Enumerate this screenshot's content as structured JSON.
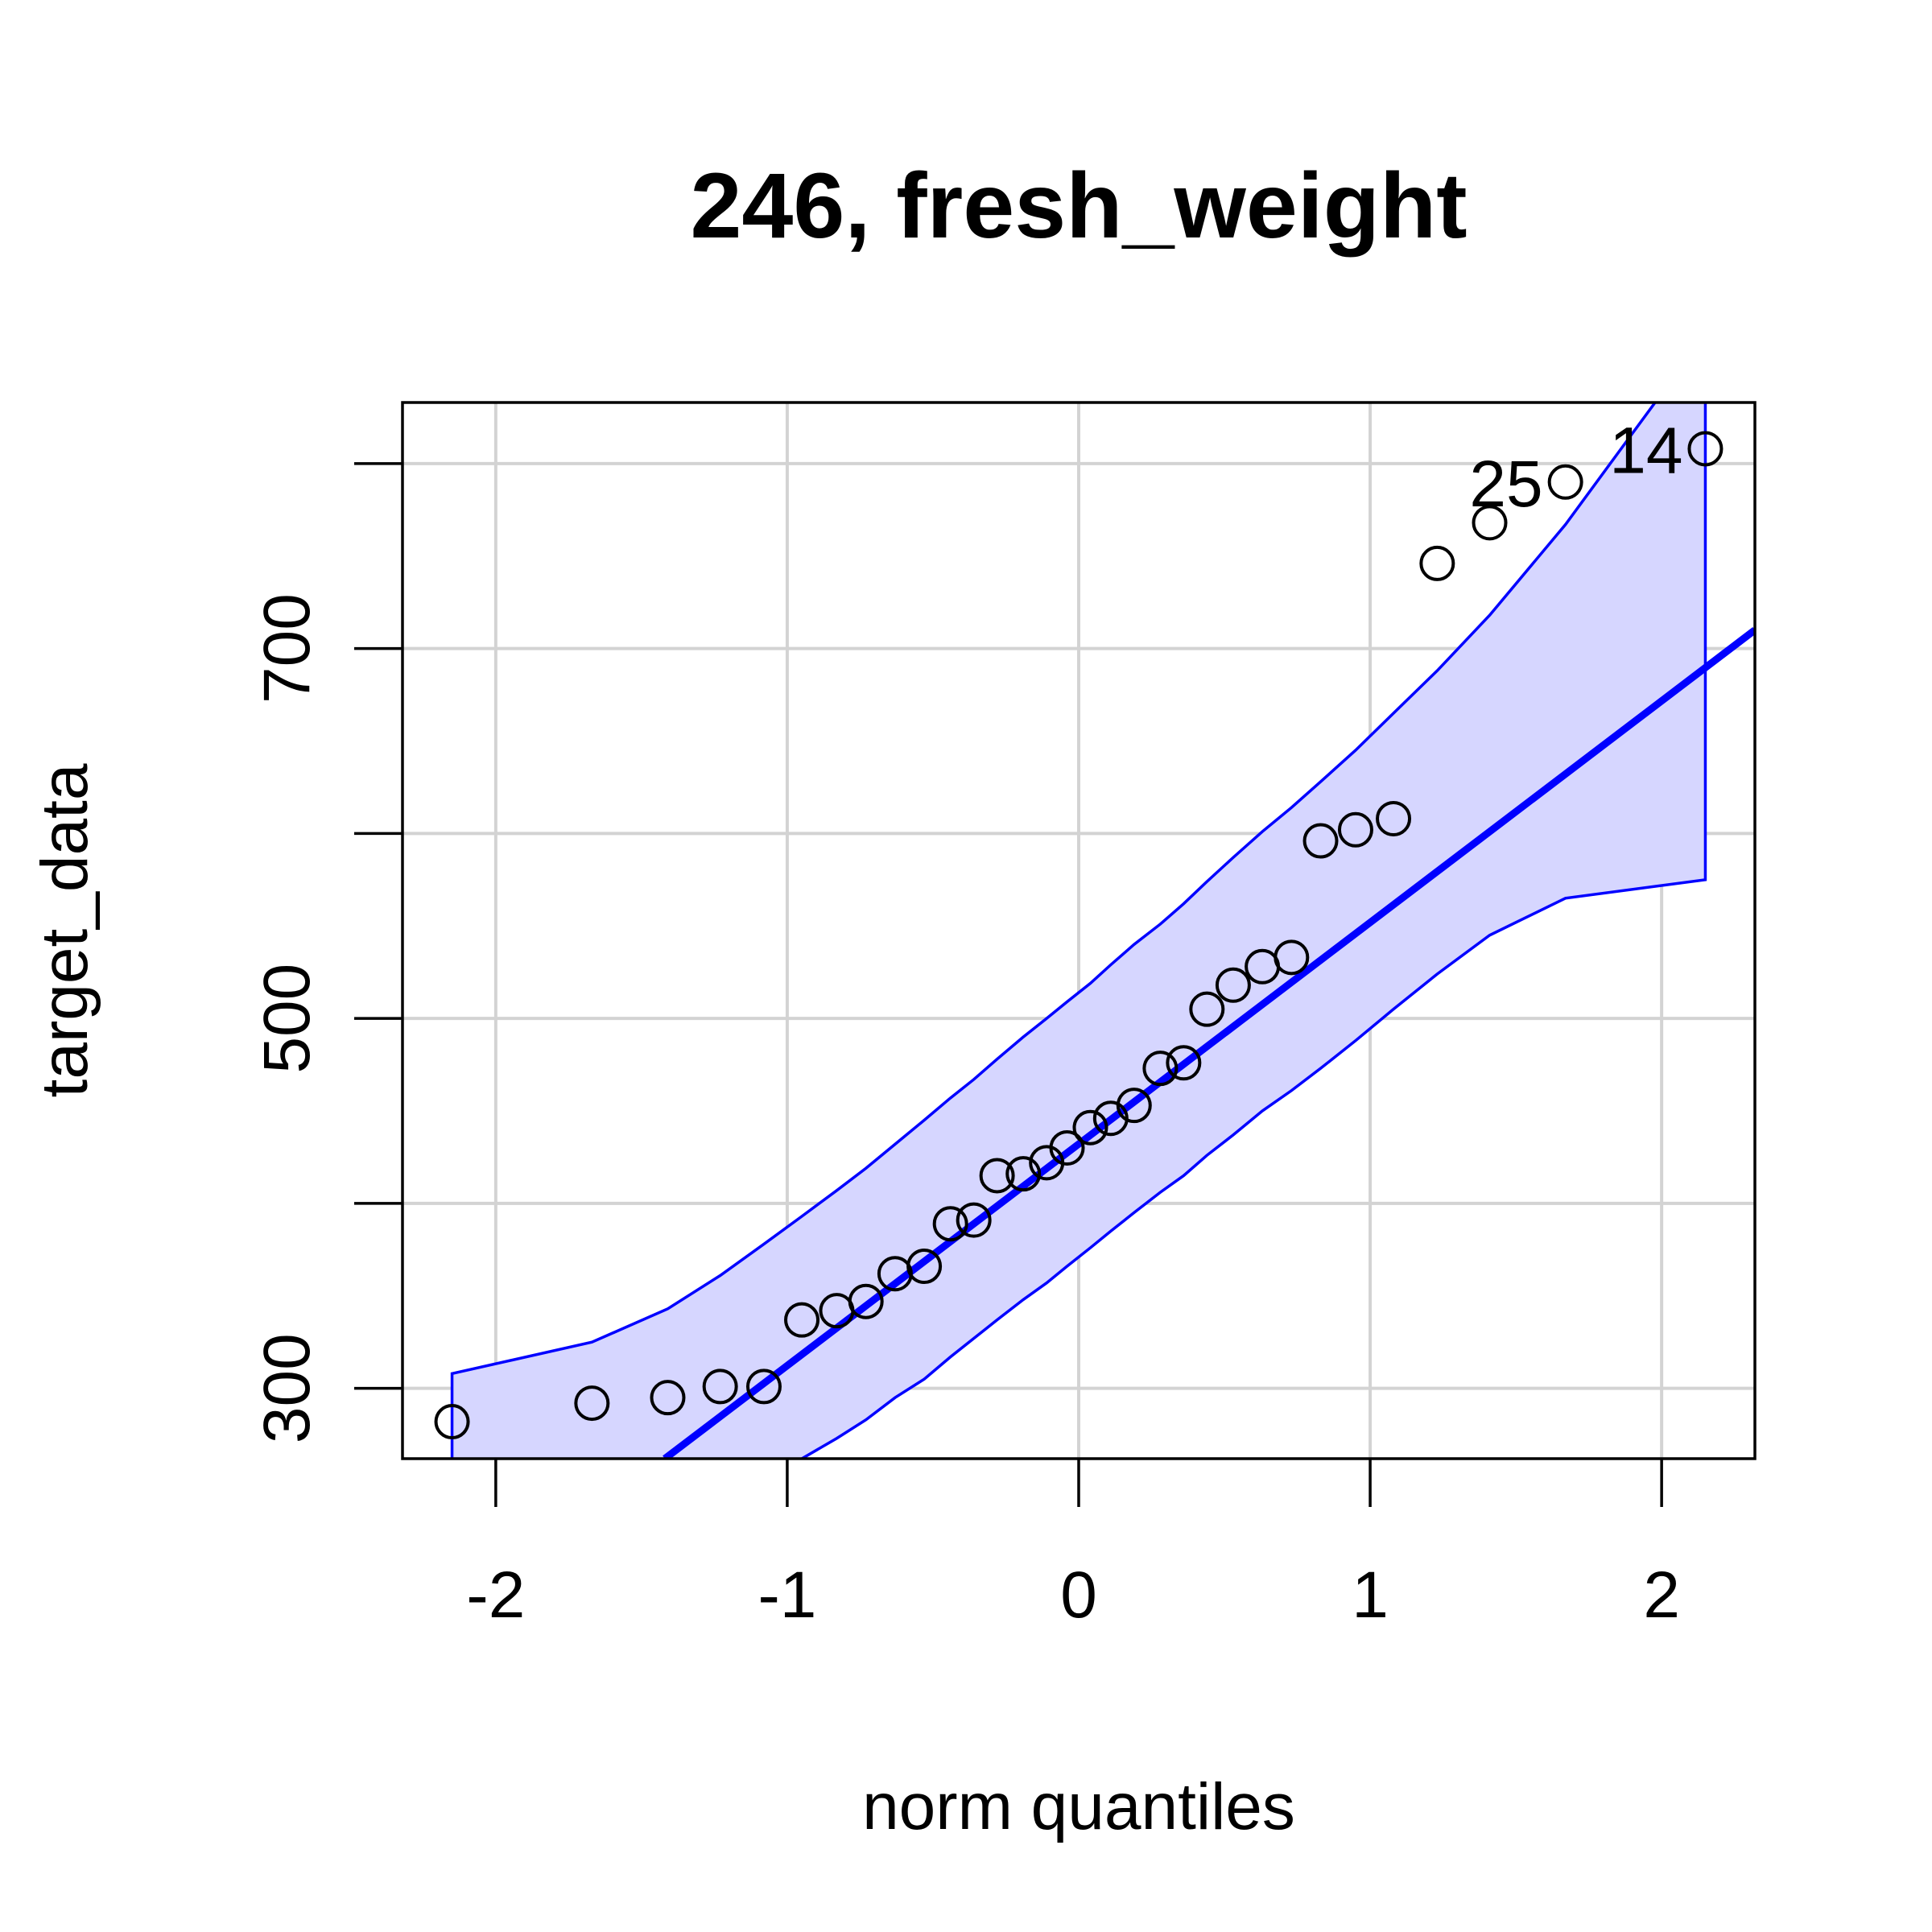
{
  "chart_data": {
    "type": "scatter",
    "title": "246, fresh_weight",
    "xlabel": "norm quantiles",
    "ylabel": "target_data",
    "xlim": [
      -2.32,
      2.32
    ],
    "ylim": [
      262,
      833
    ],
    "xticks": [
      -2,
      -1,
      0,
      1,
      2
    ],
    "xtick_labels": [
      "-2",
      "-1",
      "0",
      "1",
      "2"
    ],
    "yticks": [
      300,
      400,
      500,
      600,
      700,
      800
    ],
    "ytick_labels": [
      "300",
      "",
      "500",
      "",
      "700",
      ""
    ],
    "grid": true,
    "colors": {
      "points": "#000000",
      "line": "#0000ff",
      "band_fill": "#d6d6ff",
      "band_edge": "#0000ff",
      "grid": "#d3d3d3"
    },
    "series": [
      {
        "type": "points",
        "x": [
          -2.15,
          -1.67,
          -1.41,
          -1.23,
          -1.08,
          -0.95,
          -0.83,
          -0.73,
          -0.63,
          -0.53,
          -0.44,
          -0.36,
          -0.28,
          -0.19,
          -0.11,
          -0.04,
          0.04,
          0.11,
          0.19,
          0.28,
          0.36,
          0.44,
          0.53,
          0.63,
          0.73,
          0.83,
          0.95,
          1.08,
          1.23,
          1.41,
          1.67,
          2.15
        ],
        "y": [
          282,
          292,
          295,
          301,
          301,
          337,
          342,
          347,
          362,
          366,
          389,
          391,
          415,
          416,
          422,
          430,
          441,
          446,
          453,
          473,
          476,
          505,
          518,
          528,
          533,
          596,
          602,
          608,
          746,
          768,
          790,
          808
        ],
        "labels": [
          {
            "index": 30,
            "text": "25"
          },
          {
            "index": 31,
            "text": "14"
          }
        ]
      },
      {
        "type": "reference_line",
        "x": [
          -1.42,
          2.32
        ],
        "y": [
          262,
          710
        ]
      },
      {
        "type": "confidence_band",
        "x": [
          -2.15,
          -1.67,
          -1.41,
          -1.23,
          -1.08,
          -0.95,
          -0.83,
          -0.73,
          -0.63,
          -0.53,
          -0.44,
          -0.36,
          -0.28,
          -0.19,
          -0.11,
          -0.04,
          0.04,
          0.11,
          0.19,
          0.28,
          0.36,
          0.44,
          0.53,
          0.63,
          0.73,
          0.83,
          0.95,
          1.08,
          1.23,
          1.41,
          1.67,
          2.15
        ],
        "upper": [
          308,
          325,
          343,
          361,
          378,
          393,
          407,
          419,
          432,
          445,
          457,
          467,
          478,
          490,
          500,
          509,
          519,
          529,
          540,
          551,
          562,
          574,
          587,
          601,
          614,
          628,
          645,
          665,
          688,
          718,
          767,
          870
        ],
        "lower": [
          160,
          196,
          219,
          236,
          250,
          262,
          273,
          283,
          295,
          305,
          317,
          327,
          337,
          348,
          357,
          366,
          376,
          385,
          395,
          406,
          415,
          426,
          437,
          450,
          461,
          473,
          488,
          505,
          524,
          545,
          565,
          575
        ]
      }
    ]
  }
}
